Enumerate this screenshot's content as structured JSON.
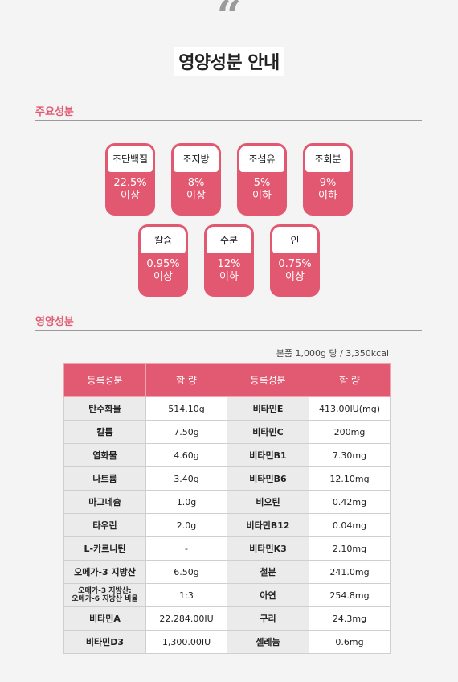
{
  "header": {
    "quote_mark": "“",
    "title": "영양성분 안내"
  },
  "sections": {
    "main_ingredients": "주요성분",
    "nutrition": "영양성분"
  },
  "badges": [
    {
      "name": "조단백질",
      "value": "22.5%",
      "limit": "이상"
    },
    {
      "name": "조지방",
      "value": "8%",
      "limit": "이상"
    },
    {
      "name": "조섬유",
      "value": "5%",
      "limit": "이하"
    },
    {
      "name": "조회분",
      "value": "9%",
      "limit": "이하"
    },
    {
      "name": "칼슘",
      "value": "0.95%",
      "limit": "이상"
    },
    {
      "name": "수분",
      "value": "12%",
      "limit": "이하"
    },
    {
      "name": "인",
      "value": "0.75%",
      "limit": "이상"
    }
  ],
  "table": {
    "note": "본품 1,000g 당 / 3,350kcal",
    "headers": [
      "등록성분",
      "함  량",
      "등록성분",
      "함  량"
    ],
    "rows": [
      [
        "탄수화물",
        "514.10g",
        "비타민E",
        "413.00IU(mg)"
      ],
      [
        "칼륨",
        "7.50g",
        "비타민C",
        "200mg"
      ],
      [
        "염화물",
        "4.60g",
        "비타민B1",
        "7.30mg"
      ],
      [
        "나트륨",
        "3.40g",
        "비타민B6",
        "12.10mg"
      ],
      [
        "마그네슘",
        "1.0g",
        "비오틴",
        "0.42mg"
      ],
      [
        "타우린",
        "2.0g",
        "비타민B12",
        "0.04mg"
      ],
      [
        "L-카르니틴",
        "-",
        "비타민K3",
        "2.10mg"
      ],
      [
        "오메가-3 지방산",
        "6.50g",
        "철분",
        "241.0mg"
      ],
      [
        "오메가-3 지방산:\n오메가-6 지방산 비율",
        "1:3",
        "아연",
        "254.8mg"
      ],
      [
        "비타민A",
        "22,284.00IU",
        "구리",
        "24.3mg"
      ],
      [
        "비타민D3",
        "1,300.00IU",
        "셀레늄",
        "0.6mg"
      ]
    ]
  },
  "colors": {
    "accent": "#e25a72",
    "badge": "#e35871",
    "name_cell": "#ebebeb",
    "page_bg": "#f4f4f4"
  }
}
